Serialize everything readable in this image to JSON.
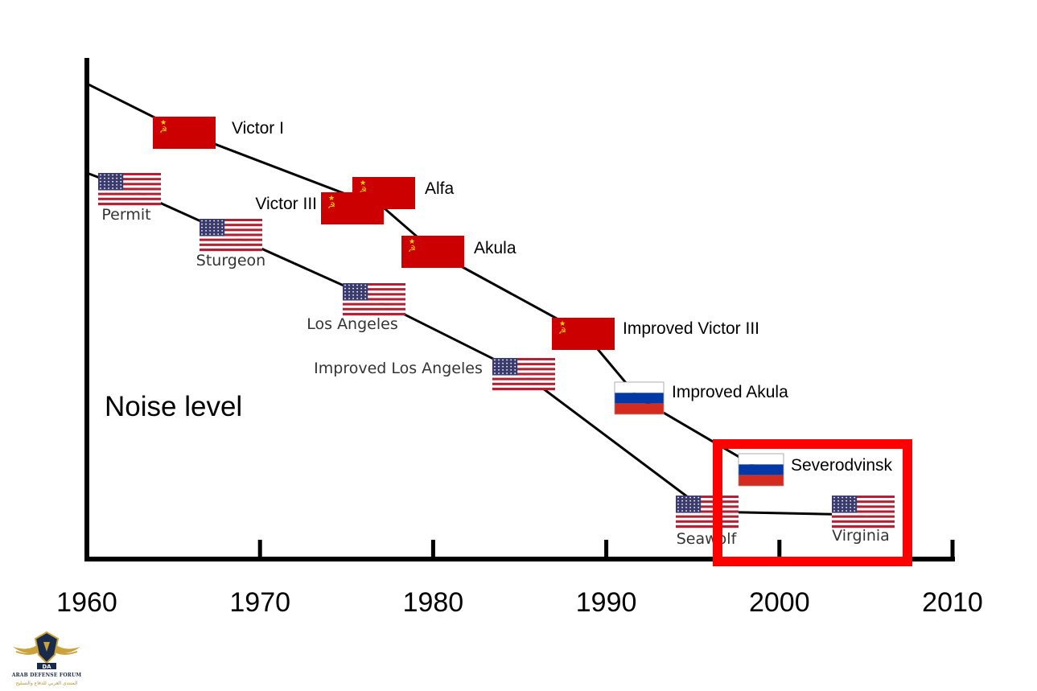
{
  "chart_data": {
    "type": "line",
    "ylabel": "Noise level",
    "xlim": [
      1960,
      2010
    ],
    "x_ticks": [
      "1960",
      "1970",
      "1980",
      "1990",
      "2000",
      "2010"
    ],
    "series": [
      {
        "country": "USSR/Russia",
        "points": [
          {
            "label": "Victor I",
            "year": 1965,
            "noise": 0.85,
            "flag": "ussr"
          },
          {
            "label": "Alfa",
            "year": 1977,
            "noise": 0.71,
            "flag": "ussr"
          },
          {
            "label": "Victor III",
            "year": 1975,
            "noise": 0.68,
            "flag": "ussr"
          },
          {
            "label": "Akula",
            "year": 1980,
            "noise": 0.6,
            "flag": "ussr"
          },
          {
            "label": "Improved Victor III",
            "year": 1988,
            "noise": 0.43,
            "flag": "ussr"
          },
          {
            "label": "Improved Akula",
            "year": 1991,
            "noise": 0.3,
            "flag": "russia"
          },
          {
            "label": "Severodvinsk",
            "year": 1999,
            "noise": 0.17,
            "flag": "russia"
          }
        ]
      },
      {
        "country": "USA",
        "points": [
          {
            "label": "Permit",
            "year": 1962,
            "noise": 0.75,
            "flag": "usa"
          },
          {
            "label": "Sturgeon",
            "year": 1968,
            "noise": 0.65,
            "flag": "usa"
          },
          {
            "label": "Los Angeles",
            "year": 1976,
            "noise": 0.5,
            "flag": "usa"
          },
          {
            "label": "Improved Los Angeles",
            "year": 1985,
            "noise": 0.37,
            "flag": "usa"
          },
          {
            "label": "Seawolf",
            "year": 1996,
            "noise": 0.09,
            "flag": "usa"
          },
          {
            "label": "Virginia",
            "year": 2005,
            "noise": 0.09,
            "flag": "usa"
          }
        ]
      }
    ],
    "highlight": {
      "x_range": [
        1997,
        2007
      ],
      "color": "#ff0000"
    }
  },
  "colors": {
    "ussr_red": "#cc0000",
    "ussr_gold": "#ffd700",
    "us_red": "#b22234",
    "us_blue": "#3c3b6e",
    "ru_blue": "#0039a6",
    "ru_red": "#d52b1e",
    "highlight": "#ff0000"
  },
  "logo": {
    "name_en": "ARAB DEFENSE FORUM",
    "name_ar": "المنتدى العربي للدفاع والتسليح"
  }
}
